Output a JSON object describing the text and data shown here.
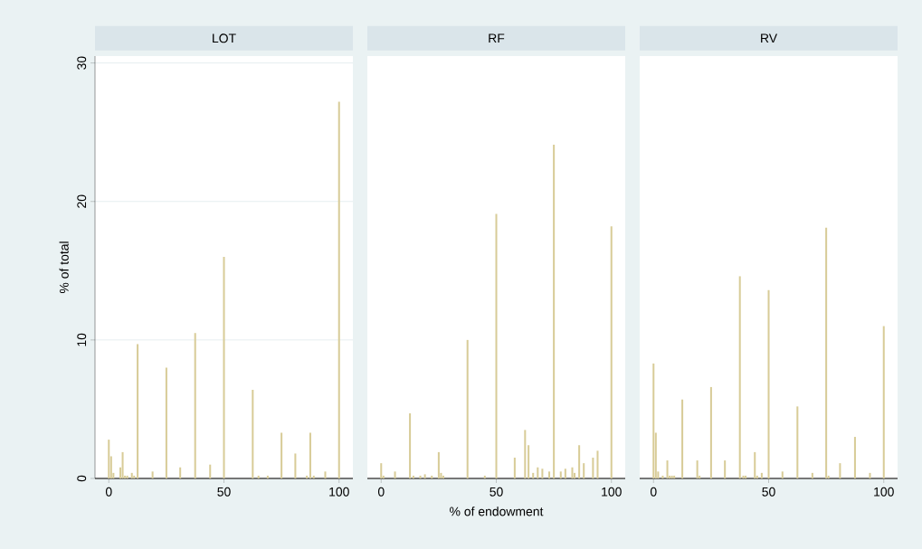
{
  "chart_data": [
    {
      "type": "bar",
      "title": "LOT",
      "ylabel": "% of total",
      "color": "#d8cc98",
      "grid": "y",
      "xlim": [
        -6,
        106
      ],
      "xticks": [
        0,
        50,
        100
      ],
      "ylim": [
        0,
        30.5
      ],
      "yticks": [
        0,
        10,
        20,
        30
      ],
      "x": [
        0,
        1,
        2,
        5,
        6,
        7,
        8,
        10,
        11,
        12.5,
        19,
        25,
        31,
        37.5,
        44,
        50,
        62.5,
        65,
        69,
        75,
        81,
        86,
        87.5,
        89,
        94,
        100
      ],
      "values": [
        2.8,
        1.6,
        0.4,
        0.8,
        1.9,
        0.2,
        0.2,
        0.4,
        0.2,
        9.7,
        0.5,
        8.0,
        0.8,
        10.5,
        1.0,
        16.0,
        6.4,
        0.2,
        0.2,
        3.3,
        1.8,
        0.2,
        3.3,
        0.2,
        0.5,
        27.2
      ]
    },
    {
      "type": "bar",
      "title": "RF",
      "xlabel": "% of endowment",
      "color": "#d8cc98",
      "grid": "y",
      "tick_labels": "x",
      "xlim": [
        -6,
        106
      ],
      "xticks": [
        0,
        50,
        100
      ],
      "ylim": [
        0,
        30.5
      ],
      "yticks": [
        0,
        10,
        20,
        30
      ],
      "x": [
        0,
        1,
        6,
        12.5,
        14,
        17,
        19,
        22,
        25,
        26,
        27,
        37.5,
        45,
        50,
        58,
        62.5,
        64,
        66,
        68,
        70,
        73,
        75,
        78,
        80,
        83,
        84,
        86,
        88,
        92,
        94,
        100
      ],
      "values": [
        1.1,
        0.2,
        0.5,
        4.7,
        0.2,
        0.2,
        0.3,
        0.2,
        1.9,
        0.4,
        0.2,
        10.0,
        0.2,
        19.1,
        1.5,
        3.5,
        2.4,
        0.4,
        0.8,
        0.7,
        0.5,
        24.1,
        0.5,
        0.7,
        0.8,
        0.4,
        2.4,
        1.1,
        1.5,
        2.0,
        18.2
      ]
    },
    {
      "type": "bar",
      "title": "RV",
      "color": "#d8cc98",
      "grid": "y",
      "tick_labels": "x",
      "xlim": [
        -6,
        106
      ],
      "xticks": [
        0,
        50,
        100
      ],
      "ylim": [
        0,
        30.5
      ],
      "yticks": [
        0,
        10,
        20,
        30
      ],
      "x": [
        0,
        1,
        2,
        4,
        6,
        7,
        8,
        9,
        12.5,
        19,
        20,
        25,
        31,
        37.5,
        39,
        40,
        44,
        45,
        47,
        50,
        56,
        62.5,
        69,
        75,
        76,
        81,
        87.5,
        94,
        100
      ],
      "values": [
        8.3,
        3.3,
        0.5,
        0.2,
        1.3,
        0.2,
        0.2,
        0.2,
        5.7,
        1.3,
        0.2,
        6.6,
        1.3,
        14.6,
        0.2,
        0.2,
        1.9,
        0.2,
        0.4,
        13.6,
        0.5,
        5.2,
        0.4,
        18.1,
        0.2,
        1.1,
        3.0,
        0.4,
        11.0
      ]
    }
  ]
}
